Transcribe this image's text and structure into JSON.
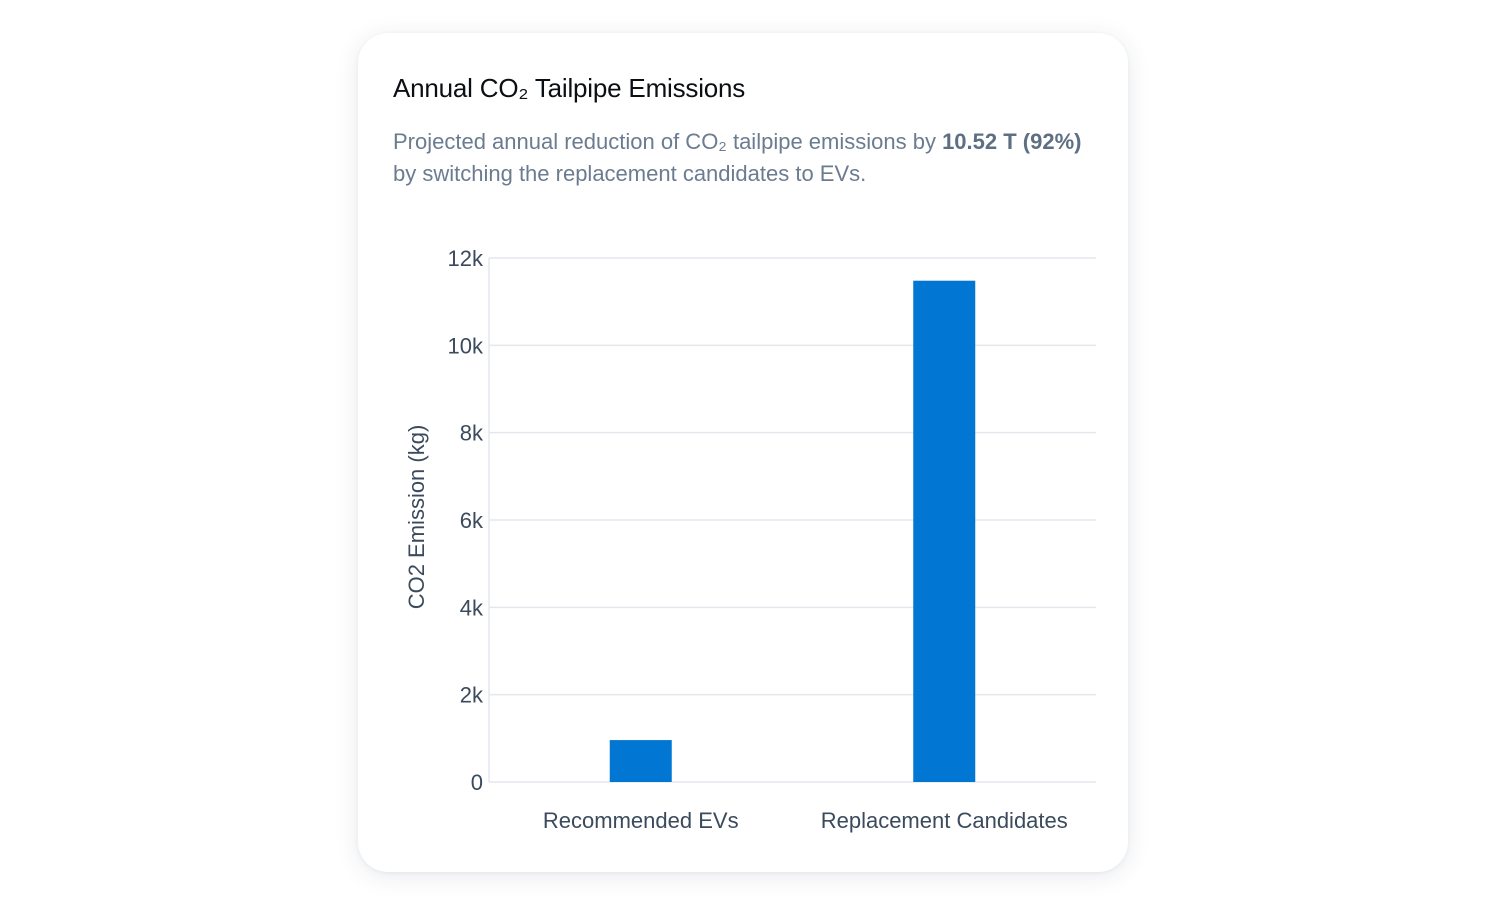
{
  "card": {
    "title": "Annual CO₂ Tailpipe Emissions",
    "subtitle_pre": "Projected annual reduction of CO₂ tailpipe emissions by ",
    "subtitle_bold": "10.52 T (92%)",
    "subtitle_post": " by switching the replacement candidates to EVs."
  },
  "colors": {
    "bar": "#0176d3",
    "grid": "#e3e8ee",
    "text": "#3b4a5c"
  },
  "chart_data": {
    "type": "bar",
    "title": "Annual CO₂ Tailpipe Emissions",
    "categories": [
      "Recommended EVs",
      "Replacement Candidates"
    ],
    "values": [
      960,
      11480
    ],
    "xlabel": "",
    "ylabel": "CO2 Emission (kg)",
    "ylim": [
      0,
      12000
    ],
    "yticks": [
      0,
      2000,
      4000,
      6000,
      8000,
      10000,
      12000
    ],
    "ytick_labels": [
      "0",
      "2k",
      "4k",
      "6k",
      "8k",
      "10k",
      "12k"
    ],
    "grid": true,
    "legend": null
  }
}
